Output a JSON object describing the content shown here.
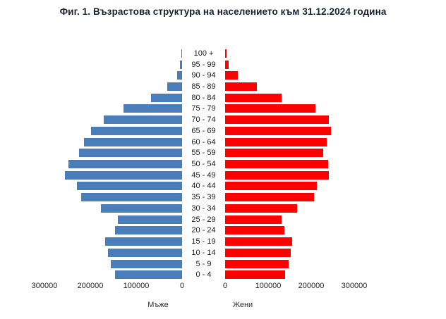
{
  "title": "Фиг. 1. Възрастова структура на населението към 31.12.2024 година",
  "colors": {
    "male_bar": "#4A7EBB",
    "female_bar": "#FF0000",
    "title_text": "#1b2030",
    "axis_text": "#262626"
  },
  "chart_data": {
    "type": "bar",
    "subtype": "population_pyramid",
    "title": "Фиг. 1. Възрастова структура на населението към 31.12.2024 година",
    "grid": false,
    "legend_position": "none",
    "axis_max": 300000,
    "age_groups": [
      "100 +",
      "95 - 99",
      "90 - 94",
      "85 - 89",
      "80 - 84",
      "75 - 79",
      "70 - 74",
      "65 - 69",
      "60 - 64",
      "55 - 59",
      "50 - 54",
      "45 - 49",
      "40 - 44",
      "35 - 39",
      "30 - 34",
      "25 - 29",
      "20 - 24",
      "15 - 19",
      "10 - 14",
      "5 - 9",
      "0 - 4"
    ],
    "series": [
      {
        "name": "Мъже",
        "side": "left",
        "color": "#4A7EBB",
        "values": [
          1000,
          4000,
          11000,
          32000,
          68000,
          128000,
          171000,
          198000,
          214000,
          225000,
          248000,
          255000,
          229000,
          220000,
          177000,
          140000,
          146000,
          168000,
          162000,
          155000,
          146000
        ]
      },
      {
        "name": "Жени",
        "side": "right",
        "color": "#FF0000",
        "values": [
          3000,
          8000,
          30000,
          74000,
          131000,
          210000,
          241000,
          246000,
          236000,
          228000,
          239000,
          241000,
          213000,
          207000,
          167000,
          131000,
          138000,
          156000,
          153000,
          148000,
          139000
        ]
      }
    ],
    "x_axis": {
      "ticks_left": [
        "300000",
        "200000",
        "100000",
        "0"
      ],
      "ticks_right": [
        "0",
        "100000",
        "200000",
        "300000"
      ]
    }
  }
}
